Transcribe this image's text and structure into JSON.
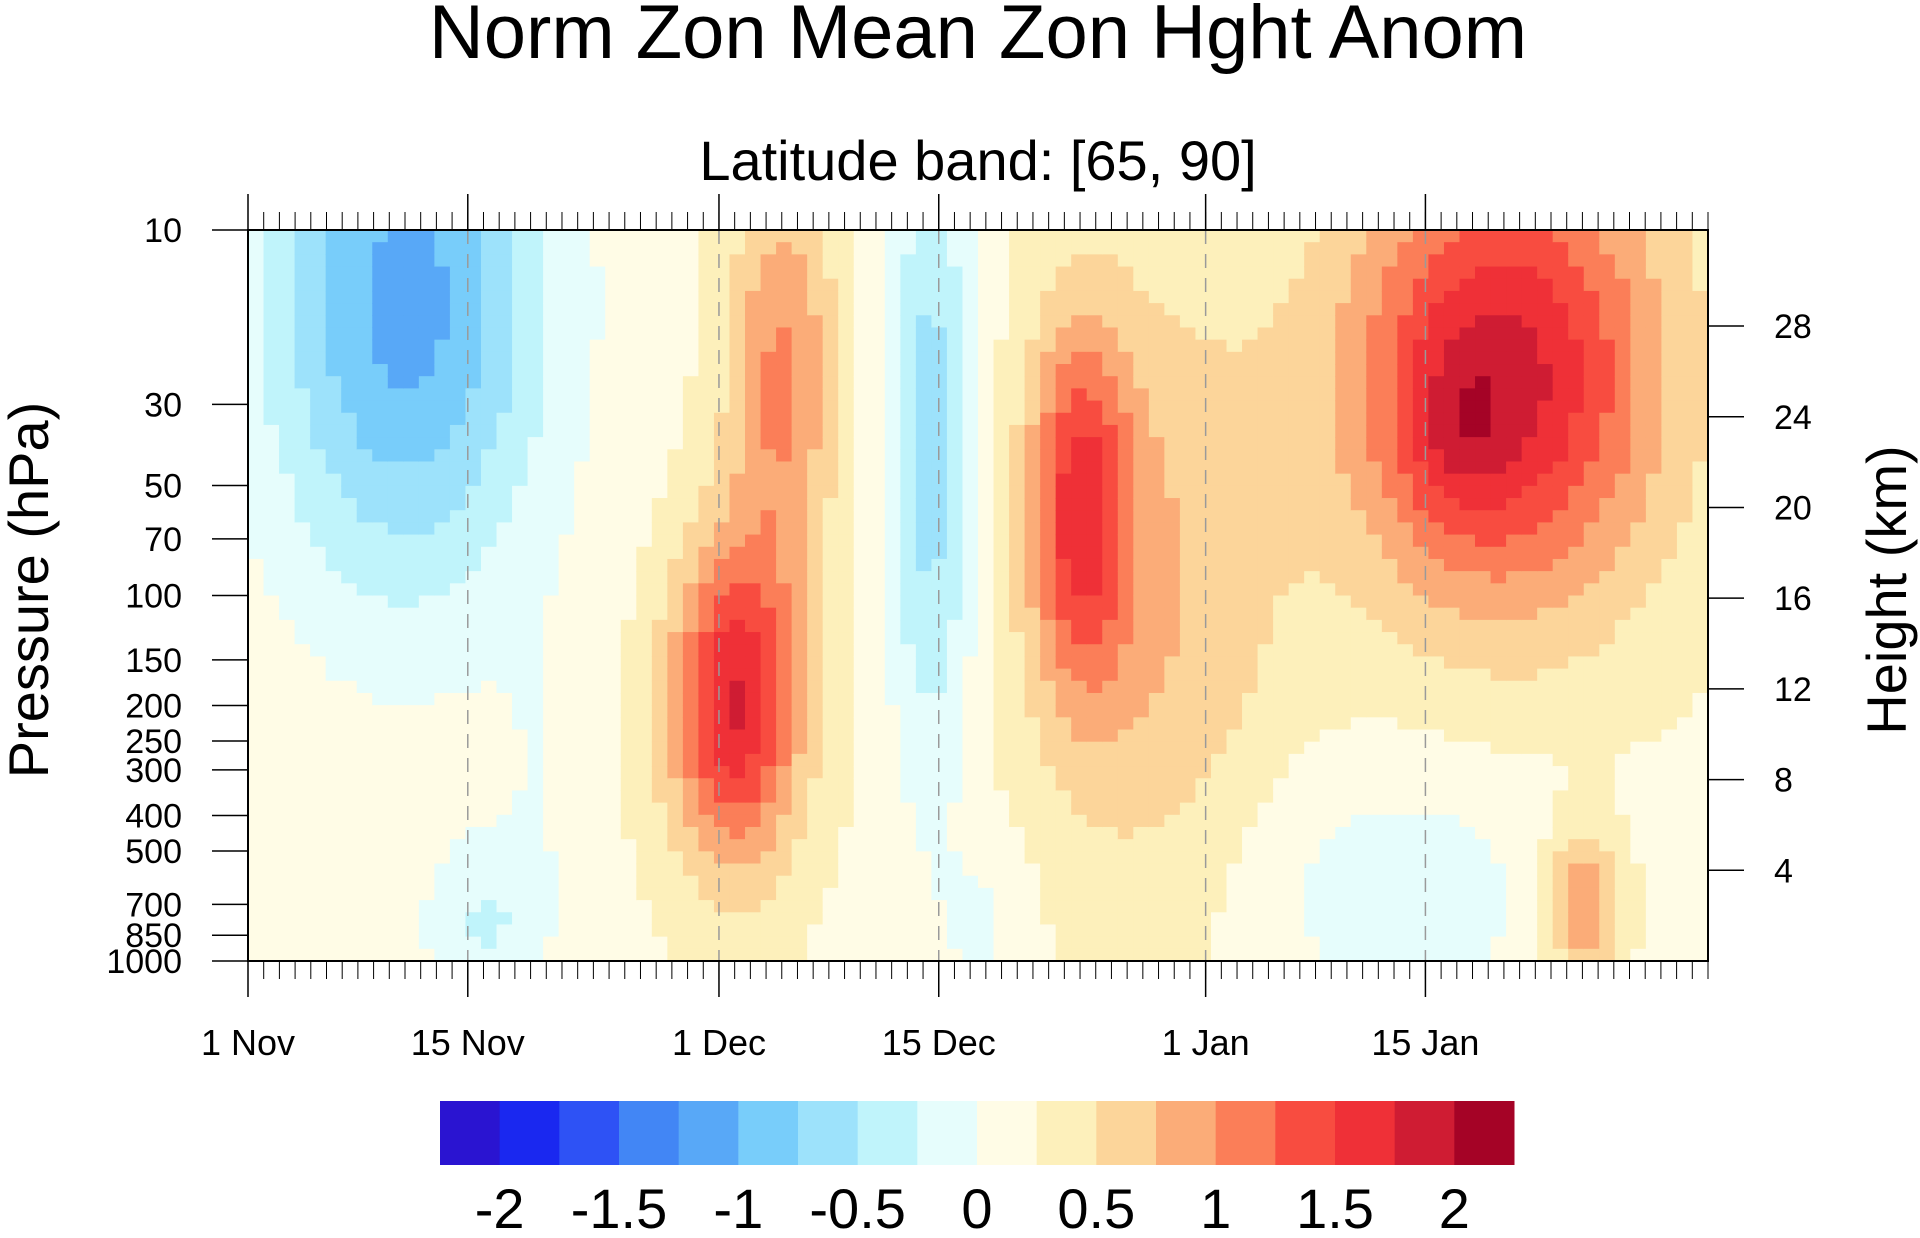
{
  "chart_data": {
    "type": "heatmap",
    "title": "Norm Zon Mean Zon Hght Anom",
    "subtitle": "Latitude band: [65, 90]",
    "ylabel": "Pressure (hPa)",
    "ylabel_right": "Height (km)",
    "xlabel": "",
    "x_range_days": [
      0,
      93
    ],
    "x_ticks": [
      {
        "day": 0,
        "label": "1 Nov"
      },
      {
        "day": 14,
        "label": "15 Nov"
      },
      {
        "day": 30,
        "label": "1 Dec"
      },
      {
        "day": 44,
        "label": "15 Dec"
      },
      {
        "day": 61,
        "label": "1 Jan"
      },
      {
        "day": 75,
        "label": "15 Jan"
      }
    ],
    "y_scale": "log",
    "y_range": [
      1000,
      10
    ],
    "y_ticks": [
      "10",
      "30",
      "50",
      "70",
      "100",
      "150",
      "200",
      "250",
      "300",
      "400",
      "500",
      "700",
      "850",
      "1000"
    ],
    "y2_ticks": [
      "28",
      "24",
      "20",
      "16",
      "12",
      "8",
      "4"
    ],
    "colorbar": {
      "levels": [
        -2.25,
        -2,
        -1.75,
        -1.5,
        -1.25,
        -1,
        -0.75,
        -0.5,
        -0.25,
        0,
        0.25,
        0.5,
        0.75,
        1,
        1.25,
        1.5,
        1.75,
        2,
        2.25
      ],
      "colors": [
        "#2a14d1",
        "#1a28f0",
        "#2e52f5",
        "#4286f5",
        "#58a8f7",
        "#78cdfa",
        "#9de2fb",
        "#c0f4fb",
        "#e6fdfc",
        "#fffce6",
        "#fdf0bb",
        "#fcd59a",
        "#fbac78",
        "#fb7e58",
        "#f84c40",
        "#ef3037",
        "#cf1c33",
        "#a50326"
      ],
      "tick_labels": [
        "-2",
        "-1.5",
        "-1",
        "-0.5",
        "0",
        "0.5",
        "1",
        "1.5",
        "2"
      ]
    },
    "grid": false,
    "legend": "bottom colorbar"
  }
}
